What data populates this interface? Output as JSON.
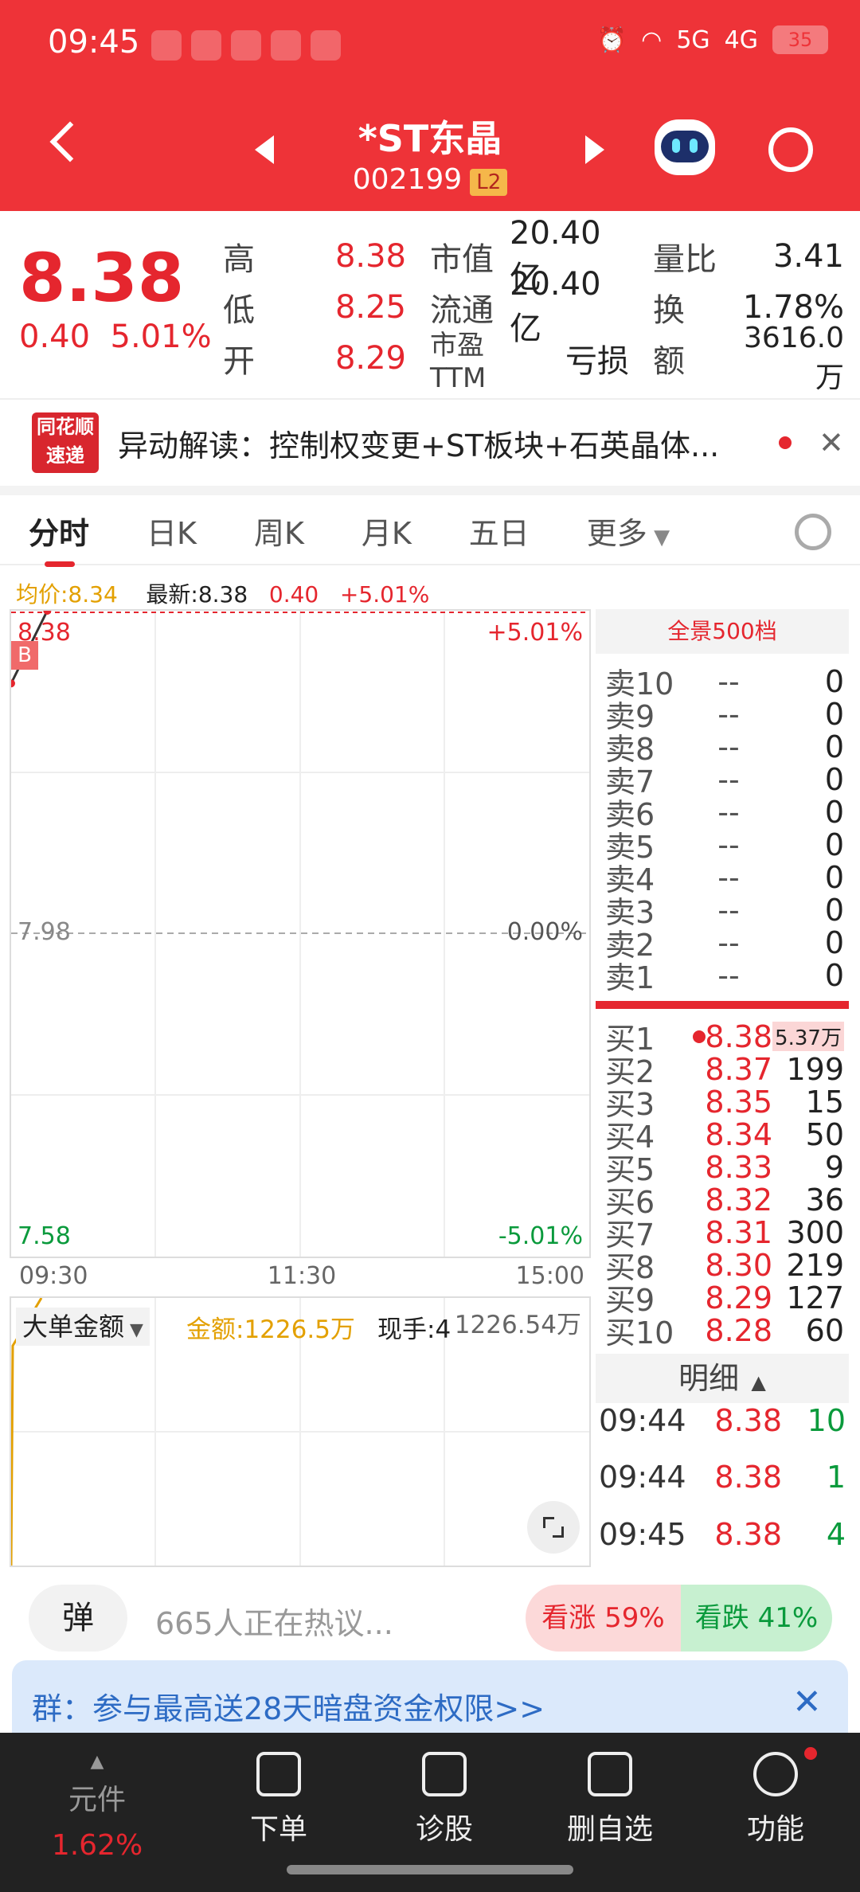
{
  "status_bar": {
    "time": "09:45",
    "battery": "35",
    "signal1": "5G",
    "signal2": "4G"
  },
  "header": {
    "stock_name": "*ST东晶",
    "stock_code": "002199",
    "level_badge": "L2"
  },
  "quote": {
    "price": "8.38",
    "change": "0.40",
    "change_pct": "5.01%",
    "high_label": "高",
    "high": "8.38",
    "low_label": "低",
    "low": "8.25",
    "open_label": "开",
    "open": "8.29",
    "mktcap_label": "市值",
    "mktcap": "20.40亿",
    "float_label": "流通",
    "float": "20.40亿",
    "pe_label": "市盈TTM",
    "pe": "亏损",
    "volratio_label": "量比",
    "volratio": "3.41",
    "turnover_label": "换",
    "turnover": "1.78%",
    "amount_label": "额",
    "amount": "3616.0万"
  },
  "news": {
    "logo_line1": "同花顺",
    "logo_line2": "速递",
    "text": "异动解读：控制权变更+ST板块+石英晶体..."
  },
  "tabs": [
    "分时",
    "日K",
    "周K",
    "月K",
    "五日",
    "更多"
  ],
  "chart_meta": {
    "avg_label": "均价:8.34",
    "latest_label": "最新:8.38",
    "change": "0.40",
    "change_pct": "+5.01%"
  },
  "chart_axes": {
    "top_price": "8.38",
    "top_pct": "+5.01%",
    "mid_price": "7.98",
    "mid_pct": "0.00%",
    "bot_price": "7.58",
    "bot_pct": "-5.01%",
    "times": [
      "09:30",
      "11:30",
      "15:00"
    ],
    "buy_marker": "B"
  },
  "chart_data": {
    "type": "line",
    "x": [
      "09:30",
      "09:45"
    ],
    "ylim": [
      7.58,
      8.38
    ],
    "series": [
      {
        "values": [
          8.29,
          8.38
        ]
      }
    ]
  },
  "volume_panel": {
    "selector": "大单金额",
    "amount_label": "金额:1226.5万",
    "hand_label": "现手:4",
    "right_value": "1226.54万"
  },
  "orderbook": {
    "header": "全景500档",
    "asks": [
      {
        "label": "卖10",
        "price": "--",
        "vol": "0"
      },
      {
        "label": "卖9",
        "price": "--",
        "vol": "0"
      },
      {
        "label": "卖8",
        "price": "--",
        "vol": "0"
      },
      {
        "label": "卖7",
        "price": "--",
        "vol": "0"
      },
      {
        "label": "卖6",
        "price": "--",
        "vol": "0"
      },
      {
        "label": "卖5",
        "price": "--",
        "vol": "0"
      },
      {
        "label": "卖4",
        "price": "--",
        "vol": "0"
      },
      {
        "label": "卖3",
        "price": "--",
        "vol": "0"
      },
      {
        "label": "卖2",
        "price": "--",
        "vol": "0"
      },
      {
        "label": "卖1",
        "price": "--",
        "vol": "0"
      }
    ],
    "bids": [
      {
        "label": "买1",
        "price": "8.38",
        "vol": "5.37万"
      },
      {
        "label": "买2",
        "price": "8.37",
        "vol": "199"
      },
      {
        "label": "买3",
        "price": "8.35",
        "vol": "15"
      },
      {
        "label": "买4",
        "price": "8.34",
        "vol": "50"
      },
      {
        "label": "买5",
        "price": "8.33",
        "vol": "9"
      },
      {
        "label": "买6",
        "price": "8.32",
        "vol": "36"
      },
      {
        "label": "买7",
        "price": "8.31",
        "vol": "300"
      },
      {
        "label": "买8",
        "price": "8.30",
        "vol": "219"
      },
      {
        "label": "买9",
        "price": "8.29",
        "vol": "127"
      },
      {
        "label": "买10",
        "price": "8.28",
        "vol": "60"
      }
    ]
  },
  "detail": {
    "header": "明细",
    "rows": [
      {
        "time": "09:44",
        "price": "8.38",
        "vol": "10"
      },
      {
        "time": "09:44",
        "price": "8.38",
        "vol": "1"
      },
      {
        "time": "09:45",
        "price": "8.38",
        "vol": "4"
      }
    ]
  },
  "social": {
    "danmu": "弹",
    "hot_text": "665人正在热议...",
    "bull": "看涨 59%",
    "bear": "看跌 41%"
  },
  "promo": {
    "text": "群：参与最高送28天暗盘资金权限>>"
  },
  "nav": {
    "item1": "元件",
    "item1_pct": "1.62%",
    "item2": "下单",
    "item3": "诊股",
    "item4": "删自选",
    "item5": "功能"
  },
  "colors": {
    "brand_red": "#ee3338",
    "up": "#e5262e",
    "down": "#0a9a3c"
  }
}
